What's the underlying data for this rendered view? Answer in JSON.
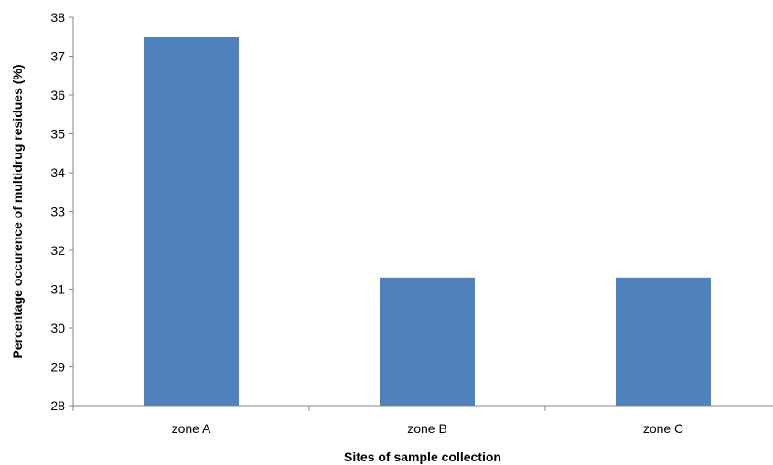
{
  "chart_data": {
    "type": "bar",
    "title": "",
    "xlabel": "Sites of sample collection",
    "ylabel": "Percentage occurence of multidrug residues (%)",
    "categories": [
      "zone A",
      "zone B",
      "zone C"
    ],
    "values": [
      37.5,
      31.3,
      31.3
    ],
    "ylim": [
      28,
      38
    ],
    "yticks": [
      "28",
      "29",
      "30",
      "31",
      "32",
      "33",
      "34",
      "35",
      "36",
      "37",
      "38"
    ],
    "grid": false,
    "legend": "none",
    "bar_color": "#4f81bd",
    "axis_color": "#868686"
  }
}
